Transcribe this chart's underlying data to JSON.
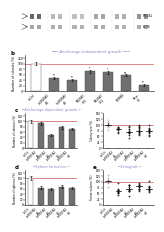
{
  "panel_b": {
    "title": "Anchorage-independent growth",
    "title_color": "#8888cc",
    "bar_color": "#707070",
    "red_line_y": 100,
    "categories": [
      "shCtrl",
      "shSRD5A2\n#1",
      "shSRD5A2\n#2",
      "SRD5A2\nOE1",
      "SRD5A2\nOE2",
      "NPMIB2",
      "Resc-\nOE"
    ],
    "values": [
      100,
      48,
      40,
      72,
      68,
      58,
      22
    ],
    "errors": [
      6,
      4,
      3,
      5,
      5,
      4,
      3
    ],
    "ylabel": "Number of colonies (%)",
    "ylim": [
      0,
      130
    ],
    "yticks": [
      0,
      20,
      40,
      60,
      80,
      100,
      120
    ]
  },
  "panel_c": {
    "title": "Anchorage-dependent growth",
    "title_color": "#8888cc",
    "bar_color": "#707070",
    "red_line_y": 100,
    "bar_categories": [
      "shCtrl",
      "shSRD5A2\n#1",
      "shSRD5A2\n#2",
      "shSRD5A2\n#3",
      "shSRD5A2\n#4"
    ],
    "bar_values": [
      100,
      93,
      48,
      78,
      72
    ],
    "bar_errors": [
      7,
      6,
      4,
      5,
      5
    ],
    "dot_categories": [
      "shCtrl",
      "shSRD5A2\n#1",
      "shSRD5A2\n#2",
      "shSRD5A2\n#3",
      "shSRD5A2\n#4"
    ],
    "dot_means": [
      100,
      85,
      72,
      80,
      75
    ],
    "ylabel_bar": "Number of colonies (%)",
    "ylabel_dot": "Colony size (%)",
    "ylim_bar": [
      0,
      130
    ],
    "ylim_dot": [
      0,
      150
    ],
    "yticks_bar": [
      0,
      20,
      40,
      60,
      80,
      100,
      120
    ],
    "yticks_dot": [
      0,
      25,
      50,
      75,
      100,
      125,
      150
    ]
  },
  "panel_d": {
    "title": "Sphere formation",
    "title_color": "#8888cc",
    "bar_color": "#707070",
    "red_line_y": 100,
    "categories": [
      "shCtrl",
      "shSRD5A2\n#1",
      "shSRD5A2\n#2",
      "shSRD5A2\n#3",
      "shSRD5A2\n#4"
    ],
    "values": [
      100,
      65,
      60,
      68,
      63
    ],
    "errors": [
      7,
      5,
      4,
      5,
      5
    ],
    "ylabel": "Number of spheres (%)",
    "ylim": [
      0,
      130
    ],
    "yticks": [
      0,
      20,
      40,
      60,
      80,
      100,
      120
    ]
  },
  "panel_e": {
    "title": "Xenograft",
    "title_color": "#8888cc",
    "dot_categories": [
      "shCtrl",
      "shSRD5A2\n#1",
      "shSRD5A2\n#2",
      "shSRD5A2\n#3",
      "shSRD5A2\n#4"
    ],
    "dot_means": [
      100,
      70,
      65,
      72,
      68
    ],
    "ylabel": "Tumor volume (%)",
    "ylim": [
      0,
      150
    ],
    "yticks": [
      0,
      25,
      50,
      75,
      100,
      125,
      150
    ]
  },
  "wb_rows": 2,
  "wb_cols": 6,
  "background_color": "#ffffff",
  "bar_edge_color": "#404040",
  "label_color_b": "b",
  "label_color_c": "c",
  "label_color_d": "d",
  "label_color_e": "e"
}
